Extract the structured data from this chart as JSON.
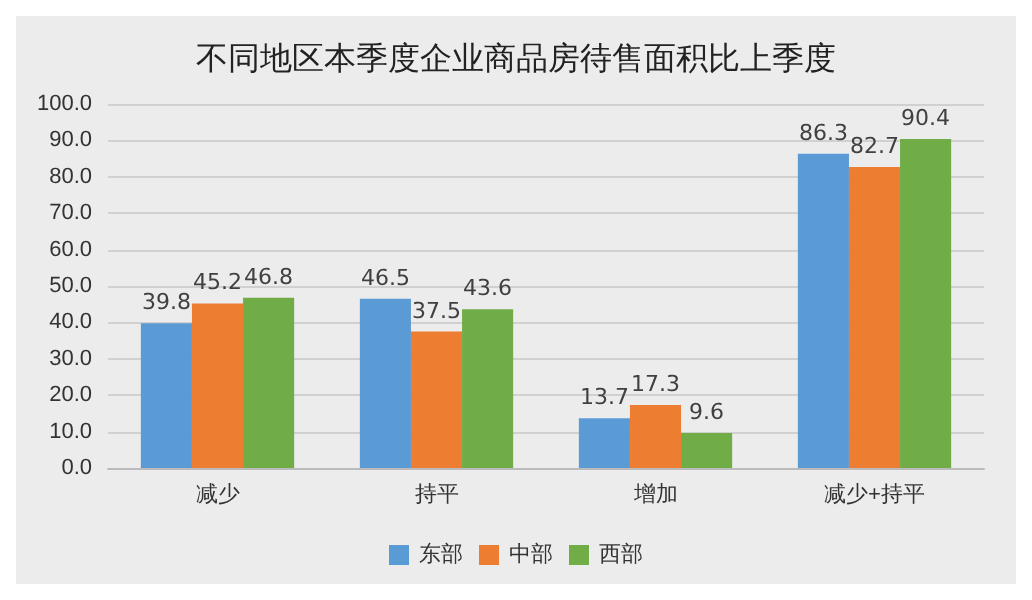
{
  "chart_data": {
    "type": "bar",
    "title": "不同地区本季度企业商品房待售面积比上季度",
    "categories": [
      "减少",
      "持平",
      "增加",
      "减少+持平"
    ],
    "series": [
      {
        "name": "东部",
        "color": "#5b9bd5",
        "values": [
          39.8,
          46.5,
          13.7,
          86.3
        ]
      },
      {
        "name": "中部",
        "color": "#ed7d31",
        "values": [
          45.2,
          37.5,
          17.3,
          82.7
        ]
      },
      {
        "name": "西部",
        "color": "#70ad47",
        "values": [
          46.8,
          43.6,
          9.6,
          90.4
        ]
      }
    ],
    "ylim": [
      0,
      100
    ],
    "yticks": [
      {
        "value": 0,
        "label": "0.0"
      },
      {
        "value": 10,
        "label": "10.0"
      },
      {
        "value": 20,
        "label": "20.0"
      },
      {
        "value": 30,
        "label": "30.0"
      },
      {
        "value": 40,
        "label": "40.0"
      },
      {
        "value": 50,
        "label": "50.0"
      },
      {
        "value": 60,
        "label": "60.0"
      },
      {
        "value": 70,
        "label": "70.0"
      },
      {
        "value": 80,
        "label": "80.0"
      },
      {
        "value": 90,
        "label": "90.0"
      },
      {
        "value": 100,
        "label": "100.0"
      }
    ],
    "grid": "y",
    "legend": "bottom",
    "data_labels": true
  }
}
